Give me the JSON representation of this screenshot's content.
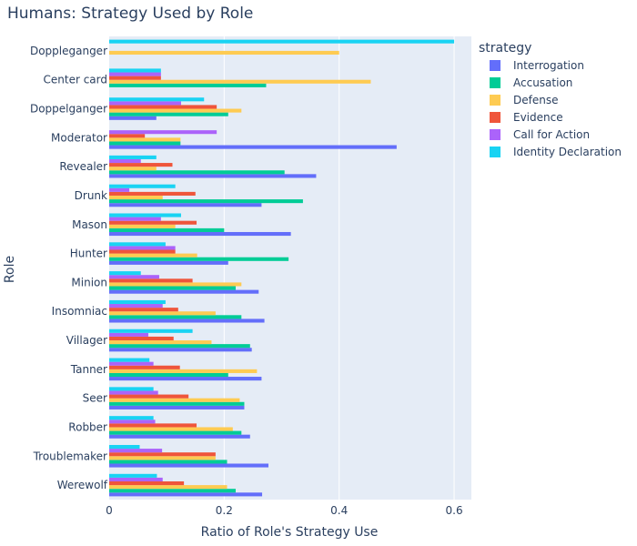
{
  "chart_data": {
    "type": "bar",
    "orientation": "horizontal",
    "title": "Humans: Strategy Used by Role",
    "xlabel": "Ratio of Role's Strategy Use",
    "ylabel": "Role",
    "xlim": [
      0,
      0.63
    ],
    "xticks": [
      "0",
      "0.2",
      "0.4",
      "0.6"
    ],
    "xtick_values": [
      0,
      0.2,
      0.4,
      0.6
    ],
    "grid": true,
    "legend_title": "strategy",
    "legend_position": "right",
    "categories": [
      "Doppleganger",
      "Center card",
      "Doppelganger",
      "Moderator",
      "Revealer",
      "Drunk",
      "Mason",
      "Hunter",
      "Minion",
      "Insomniac",
      "Villager",
      "Tanner",
      "Seer",
      "Robber",
      "Troublemaker",
      "Werewolf"
    ],
    "series": [
      {
        "name": "Interrogation",
        "color": "#636efa",
        "values": [
          0,
          0,
          0.082,
          0.5,
          0.36,
          0.265,
          0.316,
          0.207,
          0.26,
          0.27,
          0.248,
          0.265,
          0.235,
          0.245,
          0.277,
          0.266
        ]
      },
      {
        "name": "Accusation",
        "color": "#00cc96",
        "values": [
          0,
          0.273,
          0.207,
          0.124,
          0.305,
          0.337,
          0.2,
          0.312,
          0.22,
          0.23,
          0.245,
          0.207,
          0.235,
          0.23,
          0.205,
          0.22
        ]
      },
      {
        "name": "Defense",
        "color": "#fecb52",
        "values": [
          0.4,
          0.455,
          0.23,
          0.124,
          0.082,
          0.093,
          0.115,
          0.153,
          0.23,
          0.185,
          0.178,
          0.257,
          0.227,
          0.215,
          0.185,
          0.205
        ]
      },
      {
        "name": "Evidence",
        "color": "#ef553b",
        "values": [
          0,
          0.09,
          0.187,
          0.062,
          0.11,
          0.15,
          0.152,
          0.115,
          0.145,
          0.12,
          0.112,
          0.123,
          0.138,
          0.152,
          0.185,
          0.13
        ]
      },
      {
        "name": "Call for Action",
        "color": "#ab63fa",
        "values": [
          0,
          0.09,
          0.125,
          0.187,
          0.055,
          0.035,
          0.09,
          0.115,
          0.087,
          0.093,
          0.068,
          0.077,
          0.085,
          0.08,
          0.092,
          0.093
        ]
      },
      {
        "name": "Identity Declaration",
        "color": "#19d3f3",
        "values": [
          0.6,
          0.09,
          0.165,
          0,
          0.082,
          0.115,
          0.125,
          0.098,
          0.055,
          0.098,
          0.145,
          0.07,
          0.077,
          0.077,
          0.053,
          0.083
        ]
      }
    ]
  }
}
